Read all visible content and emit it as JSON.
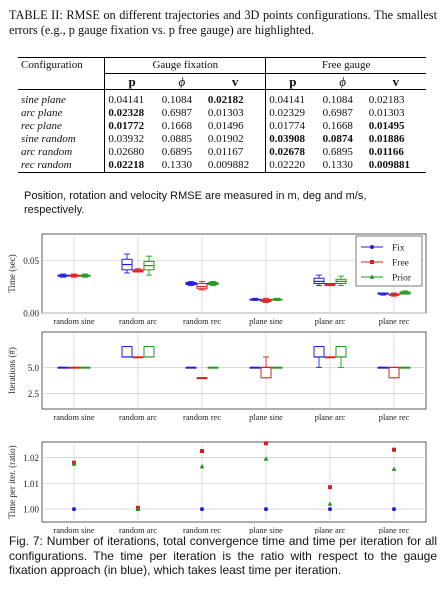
{
  "table": {
    "caption": "TABLE II: RMSE on different trajectories and 3D points configurations. The smallest errors (e.g., p gauge fixation vs. p free gauge) are highlighted.",
    "col_config": "Configuration",
    "group_fix": "Gauge fixation",
    "group_free": "Free gauge",
    "sub_p": "p",
    "sub_phi": "ϕ",
    "sub_v": "v",
    "rows": [
      {
        "config": "sine plane",
        "fix": [
          "0.04141",
          "0.1084",
          "0.02182"
        ],
        "free": [
          "0.04141",
          "0.1084",
          "0.02183"
        ],
        "bold_fix": [
          false,
          false,
          true
        ],
        "bold_free": [
          false,
          false,
          false
        ]
      },
      {
        "config": "arc plane",
        "fix": [
          "0.02328",
          "0.6987",
          "0.01303"
        ],
        "free": [
          "0.02329",
          "0.6987",
          "0.01303"
        ],
        "bold_fix": [
          true,
          false,
          false
        ],
        "bold_free": [
          false,
          false,
          false
        ]
      },
      {
        "config": "rec plane",
        "fix": [
          "0.01772",
          "0.1668",
          "0.01496"
        ],
        "free": [
          "0.01774",
          "0.1668",
          "0.01495"
        ],
        "bold_fix": [
          true,
          false,
          false
        ],
        "bold_free": [
          false,
          false,
          true
        ]
      },
      {
        "config": "sine random",
        "fix": [
          "0.03932",
          "0.0885",
          "0.01902"
        ],
        "free": [
          "0.03908",
          "0.0874",
          "0.01886"
        ],
        "bold_fix": [
          false,
          false,
          false
        ],
        "bold_free": [
          true,
          true,
          true
        ]
      },
      {
        "config": "arc random",
        "fix": [
          "0.02680",
          "0.6895",
          "0.01167"
        ],
        "free": [
          "0.02678",
          "0.6895",
          "0.01166"
        ],
        "bold_fix": [
          false,
          false,
          false
        ],
        "bold_free": [
          true,
          false,
          true
        ]
      },
      {
        "config": "rec random",
        "fix": [
          "0.02218",
          "0.1330",
          "0.009882"
        ],
        "free": [
          "0.02220",
          "0.1330",
          "0.009881"
        ],
        "bold_fix": [
          true,
          false,
          false
        ],
        "bold_free": [
          false,
          false,
          true
        ]
      }
    ],
    "note": "Position, rotation and velocity RMSE are measured in m, deg and m/s, respectively."
  },
  "figure": {
    "caption": "Fig. 7: Number of iterations, total convergence time and time per iteration for all configurations. The time per iteration is the ratio with respect to the gauge fixation approach (in blue), which takes least time per iteration.",
    "colors": {
      "Fix": "#1f1fd8",
      "Free": "#d81f1f",
      "Prior": "#1f9a1f"
    },
    "legend": [
      "Fix",
      "Free",
      "Prior"
    ],
    "chart_data": [
      {
        "type": "box",
        "ylabel": "Time (sec)",
        "ylim": [
          0.0,
          0.075
        ],
        "yticks": [
          0.0,
          0.05
        ],
        "ytick_labels": [
          "0.00",
          "0.05"
        ],
        "legend_placement": "top-right",
        "grid": true,
        "categories": [
          "random sine",
          "random arc",
          "random rec",
          "plane sine",
          "plane arc",
          "plane rec"
        ],
        "series": [
          {
            "name": "Fix",
            "boxes": [
              [
                0.034,
                0.035,
                0.035,
                0.036,
                0.037
              ],
              [
                0.038,
                0.041,
                0.046,
                0.051,
                0.056
              ],
              [
                0.026,
                0.027,
                0.028,
                0.029,
                0.03
              ],
              [
                0.012,
                0.013,
                0.013,
                0.013,
                0.014
              ],
              [
                0.026,
                0.028,
                0.03,
                0.033,
                0.036
              ],
              [
                0.017,
                0.018,
                0.018,
                0.019,
                0.019
              ]
            ]
          },
          {
            "name": "Free",
            "boxes": [
              [
                0.034,
                0.035,
                0.035,
                0.036,
                0.037
              ],
              [
                0.039,
                0.039,
                0.04,
                0.041,
                0.042
              ],
              [
                0.022,
                0.023,
                0.025,
                0.028,
                0.03
              ],
              [
                0.01,
                0.011,
                0.012,
                0.013,
                0.014
              ],
              [
                0.026,
                0.026,
                0.027,
                0.028,
                0.028
              ],
              [
                0.016,
                0.017,
                0.017,
                0.018,
                0.019
              ]
            ]
          },
          {
            "name": "Prior",
            "boxes": [
              [
                0.034,
                0.035,
                0.035,
                0.036,
                0.037
              ],
              [
                0.036,
                0.041,
                0.045,
                0.049,
                0.054
              ],
              [
                0.026,
                0.027,
                0.028,
                0.029,
                0.03
              ],
              [
                0.012,
                0.013,
                0.013,
                0.013,
                0.014
              ],
              [
                0.026,
                0.028,
                0.03,
                0.032,
                0.035
              ],
              [
                0.018,
                0.018,
                0.019,
                0.02,
                0.021
              ]
            ]
          }
        ]
      },
      {
        "type": "box",
        "ylabel": "Iterations (#)",
        "ylim": [
          1.0,
          8.4
        ],
        "yticks": [
          2.5,
          5.0
        ],
        "ytick_labels": [
          "2.5",
          "5.0"
        ],
        "grid": true,
        "categories": [
          "random sine",
          "random arc",
          "random rec",
          "plane sine",
          "plane arc",
          "plane rec"
        ],
        "series": [
          {
            "name": "Fix",
            "boxes": [
              [
                5,
                5,
                5,
                5,
                5
              ],
              [
                6,
                6,
                6,
                7,
                7
              ],
              [
                5,
                5,
                5,
                5,
                5
              ],
              [
                5,
                5,
                5,
                5,
                5
              ],
              [
                5,
                6,
                6,
                7,
                7
              ],
              [
                5,
                5,
                5,
                5,
                5
              ]
            ]
          },
          {
            "name": "Free",
            "boxes": [
              [
                5,
                5,
                5,
                5,
                5
              ],
              [
                6,
                6,
                6,
                6,
                6
              ],
              [
                4,
                4,
                4,
                4,
                4
              ],
              [
                4,
                4,
                5,
                5,
                6
              ],
              [
                6,
                6,
                6,
                6,
                6
              ],
              [
                4,
                4,
                5,
                5,
                5
              ]
            ]
          },
          {
            "name": "Prior",
            "boxes": [
              [
                5,
                5,
                5,
                5,
                5
              ],
              [
                6,
                6,
                6,
                7,
                7
              ],
              [
                5,
                5,
                5,
                5,
                5
              ],
              [
                5,
                5,
                5,
                5,
                5
              ],
              [
                5,
                6,
                6,
                7,
                7
              ],
              [
                5,
                5,
                5,
                5,
                5
              ]
            ]
          }
        ]
      },
      {
        "type": "scatter",
        "ylabel": "Time per iter. (ratio)",
        "ylim": [
          0.995,
          1.026
        ],
        "yticks": [
          1.0,
          1.01,
          1.02
        ],
        "ytick_labels": [
          "1.00",
          "1.01",
          "1.02"
        ],
        "grid": true,
        "categories": [
          "random sine",
          "random arc",
          "random rec",
          "plane sine",
          "plane arc",
          "plane rec"
        ],
        "series": [
          {
            "name": "Fix",
            "values": [
              1.0,
              1.0,
              1.0,
              1.0,
              1.0,
              1.0
            ]
          },
          {
            "name": "Free",
            "values": [
              1.018,
              1.0005,
              1.0225,
              1.0255,
              1.0085,
              1.023
            ]
          },
          {
            "name": "Prior",
            "values": [
              1.0175,
              1.0,
              1.0165,
              1.0195,
              1.002,
              1.0155
            ]
          }
        ]
      }
    ]
  }
}
